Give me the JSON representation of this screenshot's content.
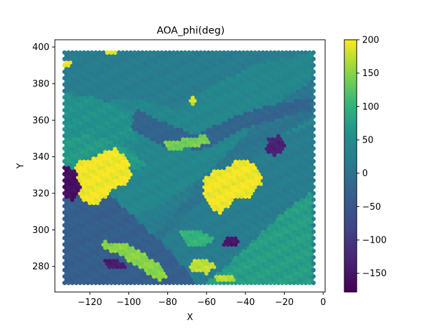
{
  "chart_data": {
    "type": "scatter",
    "title": "AOA_phi(deg)",
    "xlabel": "X",
    "ylabel": "Y",
    "xlim": [
      -138,
      1
    ],
    "ylim": [
      266,
      404
    ],
    "xticks": [
      -120,
      -100,
      -80,
      -60,
      -40,
      -20,
      0
    ],
    "yticks": [
      280,
      300,
      320,
      340,
      360,
      380,
      400
    ],
    "xtick_labels": [
      "−120",
      "−100",
      "−80",
      "−60",
      "−40",
      "−20",
      "0"
    ],
    "ytick_labels": [
      "280",
      "300",
      "320",
      "340",
      "360",
      "380",
      "400"
    ],
    "grid": false,
    "colormap": "viridis",
    "colorbar": {
      "range": [
        -178,
        200
      ],
      "ticks": [
        -150,
        -100,
        -50,
        0,
        50,
        100,
        150,
        200
      ],
      "tick_labels": [
        "−150",
        "−100",
        "−50",
        "0",
        "50",
        "100",
        "150",
        "200"
      ]
    },
    "point_grid": {
      "x_range": [
        -133,
        -5
      ],
      "y_range": [
        271,
        398
      ],
      "x_step": 2.0,
      "y_step": 1.75,
      "row_offset": 1.0
    },
    "regions": [
      {
        "name": "background",
        "value": 20
      },
      {
        "name": "upper-right-band",
        "value": 40,
        "polygon": [
          [
            -133,
            375
          ],
          [
            -118,
            370
          ],
          [
            -95,
            372
          ],
          [
            -75,
            366
          ],
          [
            -55,
            380
          ],
          [
            -35,
            390
          ],
          [
            -5,
            398
          ],
          [
            -5,
            358
          ],
          [
            -50,
            340
          ],
          [
            -80,
            315
          ],
          [
            -110,
            300
          ],
          [
            -133,
            295
          ]
        ]
      },
      {
        "name": "diagonal-band-center",
        "value": 5,
        "polygon": [
          [
            -120,
            270
          ],
          [
            -100,
            285
          ],
          [
            -80,
            305
          ],
          [
            -60,
            330
          ],
          [
            -40,
            352
          ],
          [
            -20,
            372
          ],
          [
            -5,
            382
          ],
          [
            -5,
            362
          ],
          [
            -25,
            350
          ],
          [
            -48,
            330
          ],
          [
            -68,
            310
          ],
          [
            -88,
            290
          ],
          [
            -100,
            271
          ]
        ]
      },
      {
        "name": "lower-left-dark",
        "value": -35,
        "polygon": [
          [
            -133,
            338
          ],
          [
            -110,
            320
          ],
          [
            -95,
            305
          ],
          [
            -80,
            290
          ],
          [
            -65,
            271
          ],
          [
            -133,
            271
          ]
        ]
      },
      {
        "name": "lower-right-green",
        "value": 75,
        "polygon": [
          [
            -60,
            271
          ],
          [
            -40,
            290
          ],
          [
            -20,
            310
          ],
          [
            -5,
            322
          ],
          [
            -5,
            271
          ]
        ]
      },
      {
        "name": "top-left-green",
        "value": 60,
        "polygon": [
          [
            -133,
            375
          ],
          [
            -115,
            372
          ],
          [
            -100,
            365
          ],
          [
            -95,
            350
          ],
          [
            -110,
            345
          ],
          [
            -133,
            345
          ]
        ]
      },
      {
        "name": "mid-left-green",
        "value": 70,
        "polygon": [
          [
            -133,
            350
          ],
          [
            -120,
            352
          ],
          [
            -100,
            345
          ],
          [
            -90,
            335
          ],
          [
            -105,
            330
          ],
          [
            -133,
            330
          ]
        ]
      },
      {
        "name": "center-upper-band",
        "value": -25,
        "polygon": [
          [
            -95,
            366
          ],
          [
            -80,
            358
          ],
          [
            -65,
            352
          ],
          [
            -50,
            360
          ],
          [
            -35,
            366
          ],
          [
            -20,
            370
          ],
          [
            -5,
            372
          ],
          [
            -5,
            366
          ],
          [
            -40,
            356
          ],
          [
            -62,
            344
          ],
          [
            -82,
            346
          ],
          [
            -100,
            356
          ]
        ]
      },
      {
        "name": "yellow-blob-left",
        "value": 195,
        "polygon": [
          [
            -127,
            337
          ],
          [
            -117,
            340
          ],
          [
            -112,
            343
          ],
          [
            -106,
            345
          ],
          [
            -102,
            340
          ],
          [
            -98,
            332
          ],
          [
            -100,
            326
          ],
          [
            -108,
            322
          ],
          [
            -112,
            318
          ],
          [
            -116,
            313
          ],
          [
            -124,
            316
          ],
          [
            -128,
            325
          ]
        ]
      },
      {
        "name": "yellow-blob-right",
        "value": 195,
        "polygon": [
          [
            -61,
            328
          ],
          [
            -56,
            333
          ],
          [
            -50,
            334
          ],
          [
            -45,
            338
          ],
          [
            -38,
            338
          ],
          [
            -33,
            334
          ],
          [
            -31,
            326
          ],
          [
            -38,
            318
          ],
          [
            -44,
            318
          ],
          [
            -48,
            313
          ],
          [
            -53,
            309
          ],
          [
            -58,
            312
          ],
          [
            -61,
            320
          ]
        ]
      },
      {
        "name": "yellow-green-upper",
        "value": 140,
        "polygon": [
          [
            -82,
            348
          ],
          [
            -72,
            350
          ],
          [
            -60,
            352
          ],
          [
            -58,
            348
          ],
          [
            -68,
            345
          ],
          [
            -80,
            343
          ]
        ]
      },
      {
        "name": "yellow-green-lower",
        "value": 150,
        "polygon": [
          [
            -112,
            294
          ],
          [
            -100,
            292
          ],
          [
            -86,
            283
          ],
          [
            -80,
            275
          ],
          [
            -85,
            272
          ],
          [
            -95,
            280
          ],
          [
            -106,
            287
          ],
          [
            -114,
            290
          ]
        ]
      },
      {
        "name": "purple-left-edge",
        "value": -160,
        "polygon": [
          [
            -133,
            336
          ],
          [
            -127,
            332
          ],
          [
            -124,
            322
          ],
          [
            -128,
            316
          ],
          [
            -133,
            318
          ]
        ]
      },
      {
        "name": "purple-center",
        "value": -150,
        "polygon": [
          [
            -50,
            296
          ],
          [
            -45,
            297
          ],
          [
            -43,
            293
          ],
          [
            -47,
            290
          ],
          [
            -52,
            292
          ]
        ]
      },
      {
        "name": "purple-lower-left",
        "value": -140,
        "polygon": [
          [
            -112,
            285
          ],
          [
            -105,
            284
          ],
          [
            -100,
            280
          ],
          [
            -107,
            278
          ],
          [
            -113,
            281
          ]
        ]
      },
      {
        "name": "purple-right",
        "value": -130,
        "polygon": [
          [
            -28,
            350
          ],
          [
            -22,
            352
          ],
          [
            -18,
            346
          ],
          [
            -24,
            340
          ],
          [
            -30,
            343
          ]
        ]
      },
      {
        "name": "yellow-top-left",
        "value": 190,
        "polygon": [
          [
            -133,
            392
          ],
          [
            -130,
            393
          ],
          [
            -129,
            389
          ],
          [
            -133,
            388
          ]
        ]
      },
      {
        "name": "yellow-top-center",
        "value": 190,
        "polygon": [
          [
            -112,
            400
          ],
          [
            -106,
            400
          ],
          [
            -106,
            396
          ],
          [
            -112,
            396
          ]
        ]
      },
      {
        "name": "yellow-upper-mid",
        "value": 180,
        "polygon": [
          [
            -69,
            374
          ],
          [
            -66,
            374
          ],
          [
            -65,
            368
          ],
          [
            -68,
            368
          ]
        ]
      },
      {
        "name": "green-lower-mid",
        "value": 100,
        "polygon": [
          [
            -73,
            299
          ],
          [
            -64,
            300
          ],
          [
            -56,
            296
          ],
          [
            -60,
            291
          ],
          [
            -70,
            292
          ]
        ]
      },
      {
        "name": "yellow-lower-center",
        "value": 175,
        "polygon": [
          [
            -69,
            283
          ],
          [
            -60,
            284
          ],
          [
            -55,
            280
          ],
          [
            -60,
            276
          ],
          [
            -68,
            278
          ]
        ]
      },
      {
        "name": "yellow-bottom-center",
        "value": 170,
        "polygon": [
          [
            -55,
            275
          ],
          [
            -48,
            276
          ],
          [
            -45,
            272
          ],
          [
            -55,
            271
          ]
        ]
      }
    ]
  }
}
